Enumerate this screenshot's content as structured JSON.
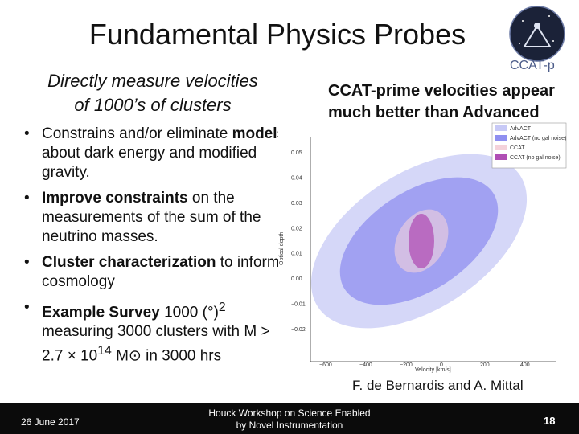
{
  "slide": {
    "title": "Fundamental Physics Probes",
    "logo_text": "CCAT-p",
    "subtitle_line1": "Directly measure velocities",
    "subtitle_line2": "of 1000’s of clusters",
    "bullets": [
      {
        "bold": "",
        "text": "Constrains and/or eliminate "
      },
      {
        "bold": "Improve constraints",
        "text": " on the measurements of the sum of the neutrino masses."
      },
      {
        "bold": "Cluster characterization",
        "text": " to inform cosmology"
      },
      {
        "bold": "Example Survey",
        "text": " 1000 (°)"
      }
    ],
    "bullet1_bold": "models",
    "bullet1_rest": " about dark energy and modified gravity.",
    "bullet4_sup": "2",
    "bullet4_line2": " measuring 3000 clusters with M > 2.7 × 10",
    "bullet4_exp": "14",
    "bullet4_tail": " M⊙ in 3000 hrs",
    "right_text": "CCAT-prime velocities appear much better than Advanced ACTPol",
    "credit": "F. de Bernardis and A. Mittal"
  },
  "footer": {
    "date": "26 June 2017",
    "event_line1": "Houck Workshop on Science Enabled",
    "event_line2": "by Novel Instrumentation",
    "page_number": "18"
  },
  "colors": {
    "advact": "#c7c9f6",
    "advact_nogal": "#8f8ff0",
    "ccat": "#f4d2da",
    "ccat_nogal": "#b04fb5"
  },
  "chart_data": {
    "type": "scatter",
    "xlabel": "Velocity [km/s]",
    "ylabel": "Optical depth",
    "x_ticks": [
      "−600",
      "−400",
      "−200",
      "0",
      "200",
      "400"
    ],
    "y_ticks": [
      "0.05",
      "0.04",
      "0.03",
      "0.02",
      "0.01",
      "0.00",
      "−0.01",
      "−0.02"
    ],
    "legend": [
      "AdvACT",
      "AdvACT (no gal noise)",
      "CCAT",
      "CCAT (no gal noise)"
    ],
    "legend_placement": "top-right",
    "grid": false
  }
}
